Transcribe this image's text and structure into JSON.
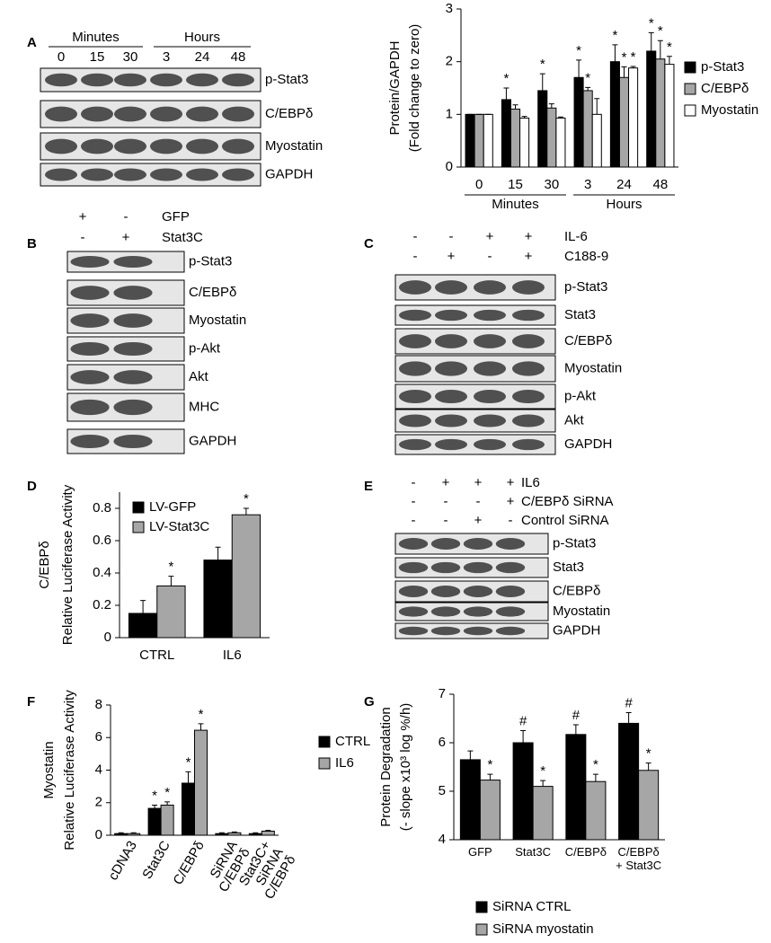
{
  "panel_labels": [
    "A",
    "B",
    "C",
    "D",
    "E",
    "F",
    "G"
  ],
  "blots": [
    {
      "header_groups": [
        "Minutes",
        "Hours"
      ],
      "lanes": [
        "0",
        "15",
        "30",
        "3",
        "24",
        "48"
      ],
      "rows": [
        "p-Stat3",
        "C/EBPδ",
        "Myostatin",
        "GAPDH"
      ]
    },
    {
      "conditions": [
        {
          "name": "GFP",
          "signs": [
            "+",
            "-"
          ]
        },
        {
          "name": "Stat3C",
          "signs": [
            "-",
            "+"
          ]
        }
      ],
      "rows": [
        "p-Stat3",
        "C/EBPδ",
        "Myostatin",
        "p-Akt",
        "Akt",
        "MHC",
        "GAPDH"
      ]
    },
    {
      "conditions": [
        {
          "name": "IL-6",
          "signs": [
            "-",
            "-",
            "+",
            "+"
          ]
        },
        {
          "name": "C188-9",
          "signs": [
            "-",
            "+",
            "-",
            "+"
          ]
        }
      ],
      "rows": [
        "p-Stat3",
        "Stat3",
        "C/EBPδ",
        "Myostatin",
        "p-Akt",
        "Akt",
        "GAPDH"
      ]
    },
    {
      "conditions": [
        {
          "name": "IL6",
          "signs": [
            "-",
            "+",
            "+",
            "+"
          ]
        },
        {
          "name": "C/EBPδ SiRNA",
          "signs": [
            "-",
            "-",
            "-",
            "+"
          ]
        },
        {
          "name": "Control SiRNA",
          "signs": [
            "-",
            "-",
            "+",
            "-"
          ]
        }
      ],
      "rows": [
        "p-Stat3",
        "Stat3",
        "C/EBPδ",
        "Myostatin",
        "GAPDH"
      ]
    }
  ],
  "chart_data": [
    {
      "type": "bar",
      "ylabel": [
        "Protein/GAPDH",
        "(Fold change to zero)"
      ],
      "categories": [
        "0",
        "15",
        "30",
        "3",
        "24",
        "48"
      ],
      "category_groups": [
        "Minutes",
        "Hours"
      ],
      "ylim": [
        0,
        3
      ],
      "yticks": [
        0,
        1,
        2,
        3
      ],
      "series": [
        {
          "name": "p-Stat3",
          "color": "#000000",
          "values": [
            1,
            1.28,
            1.45,
            1.7,
            2.0,
            2.2
          ],
          "errors": [
            0,
            0.22,
            0.32,
            0.33,
            0.32,
            0.35
          ],
          "markers": [
            null,
            "*",
            "*",
            "*",
            "*",
            "*"
          ]
        },
        {
          "name": "C/EBPδ",
          "color": "#a6a6a6",
          "values": [
            1,
            1.1,
            1.12,
            1.45,
            1.7,
            2.05
          ],
          "errors": [
            0,
            0.08,
            0.08,
            0.06,
            0.2,
            0.35
          ],
          "markers": [
            null,
            null,
            null,
            "*",
            "*",
            "*"
          ]
        },
        {
          "name": "Myostatin",
          "color": "#ffffff",
          "values": [
            1,
            0.93,
            0.93,
            1.0,
            1.88,
            1.95
          ],
          "errors": [
            0,
            0.03,
            0.02,
            0.3,
            0.03,
            0.15
          ],
          "markers": [
            null,
            null,
            null,
            null,
            "*",
            "*"
          ]
        }
      ]
    },
    {
      "type": "bar",
      "ylabel": [
        "C/EBPδ",
        "Relative Luciferase Activity"
      ],
      "categories": [
        "CTRL",
        "IL6"
      ],
      "ylim": [
        0,
        0.9
      ],
      "yticks": [
        0,
        0.2,
        0.4,
        0.6,
        0.8
      ],
      "series": [
        {
          "name": "LV-GFP",
          "color": "#000000",
          "values": [
            0.15,
            0.48
          ],
          "errors": [
            0.08,
            0.08
          ],
          "markers": [
            null,
            null
          ]
        },
        {
          "name": "LV-Stat3C",
          "color": "#a6a6a6",
          "values": [
            0.32,
            0.76
          ],
          "errors": [
            0.06,
            0.04
          ],
          "markers": [
            "*",
            "*"
          ]
        }
      ]
    },
    {
      "type": "bar",
      "ylabel": [
        "Myostatin",
        "Relative Luciferase Activity"
      ],
      "categories": [
        "cDNA3",
        "Stat3C",
        "C/EBPδ",
        "SiRNA C/EBPδ",
        "Stat3C+ SiRNA C/EBPδ"
      ],
      "ylim": [
        0,
        8
      ],
      "yticks": [
        0,
        2,
        4,
        6,
        8
      ],
      "series": [
        {
          "name": "CTRL",
          "color": "#000000",
          "values": [
            0.1,
            1.65,
            3.2,
            0.1,
            0.1
          ],
          "errors": [
            0.05,
            0.2,
            0.7,
            0.05,
            0.05
          ],
          "markers": [
            null,
            "*",
            "*",
            null,
            null
          ]
        },
        {
          "name": "IL6",
          "color": "#a6a6a6",
          "values": [
            0.1,
            1.85,
            6.45,
            0.15,
            0.25
          ],
          "errors": [
            0.05,
            0.2,
            0.4,
            0.05,
            0.05
          ],
          "markers": [
            null,
            "*",
            "*",
            null,
            null
          ]
        }
      ]
    },
    {
      "type": "bar",
      "ylabel": [
        "Protein Degradation",
        "(- slope x10³ log %/h)"
      ],
      "categories": [
        "GFP",
        "Stat3C",
        "C/EBPδ",
        "C/EBPδ + Stat3C"
      ],
      "ylim": [
        4,
        7
      ],
      "yticks": [
        4,
        5,
        6,
        7
      ],
      "series": [
        {
          "name": "SiRNA CTRL",
          "color": "#000000",
          "values": [
            5.65,
            6.0,
            6.17,
            6.4
          ],
          "errors": [
            0.18,
            0.25,
            0.2,
            0.22
          ],
          "markers": [
            null,
            "#",
            "#",
            "#"
          ]
        },
        {
          "name": "SiRNA myostatin",
          "color": "#a6a6a6",
          "values": [
            5.23,
            5.1,
            5.2,
            5.43
          ],
          "errors": [
            0.12,
            0.12,
            0.15,
            0.15
          ],
          "markers": [
            "*",
            "*",
            "*",
            "*"
          ]
        }
      ]
    }
  ]
}
